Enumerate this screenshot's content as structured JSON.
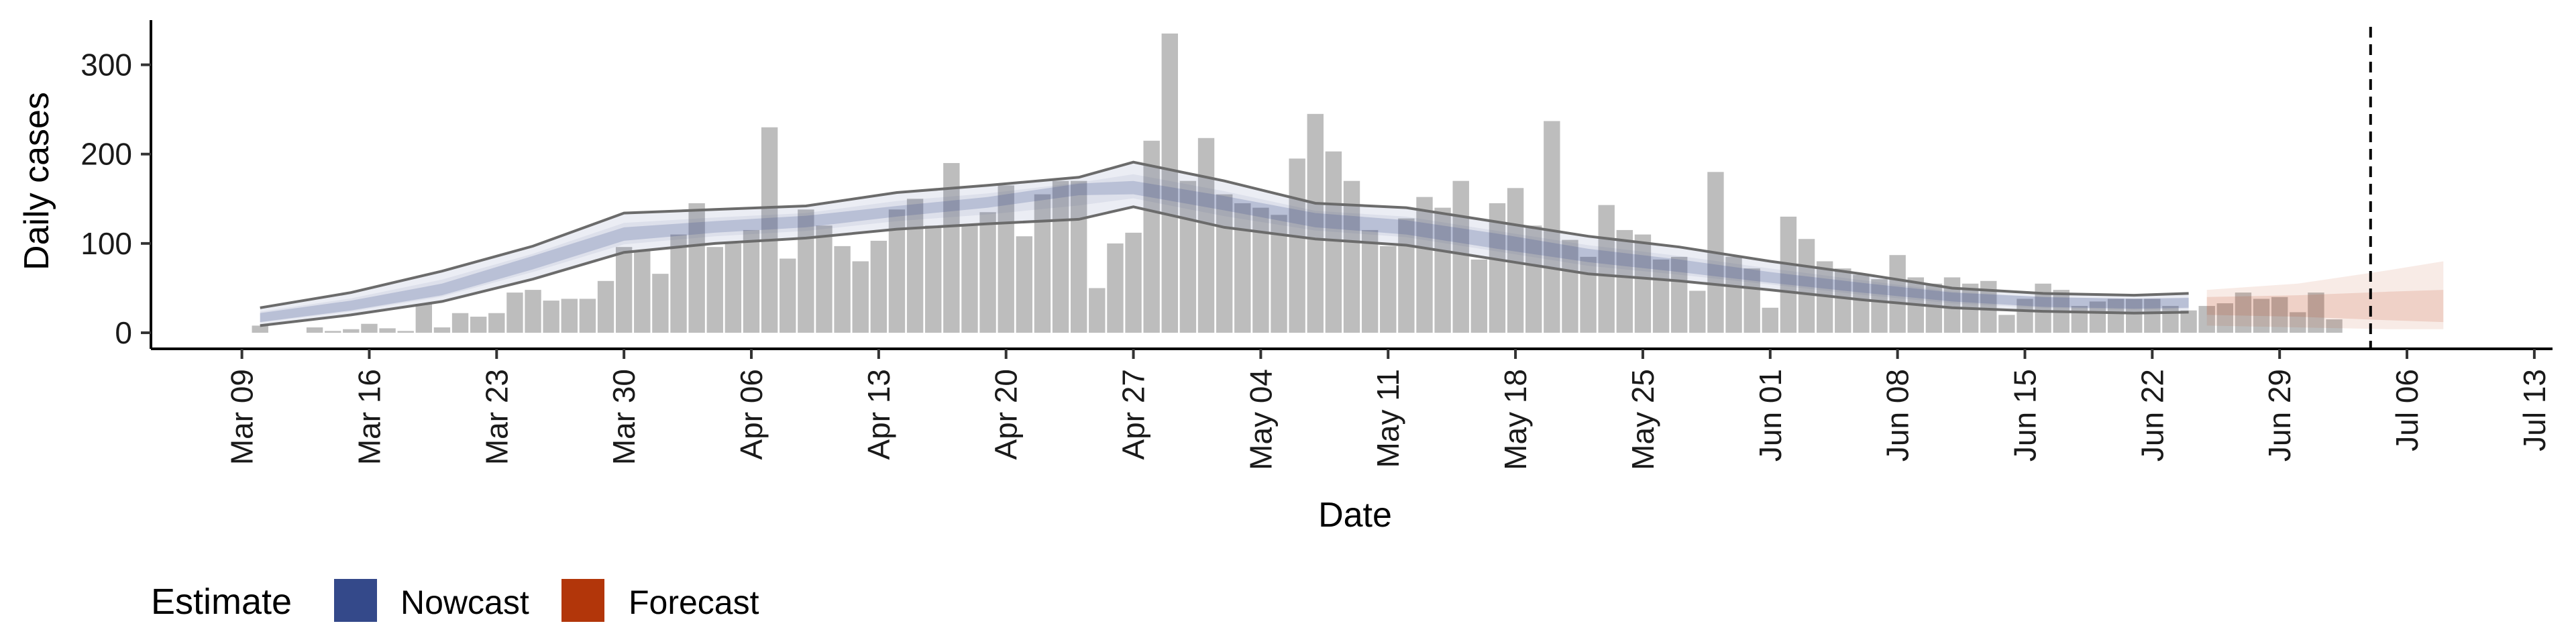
{
  "chart_data": {
    "type": "bar",
    "xlabel": "Date",
    "ylabel": "Daily cases",
    "x_range": [
      "2020-03-04",
      "2020-07-14"
    ],
    "ylim": [
      -18,
      350
    ],
    "y_ticks": [
      0,
      100,
      200,
      300
    ],
    "x_ticks": [
      {
        "date": "2020-03-09",
        "label": "Mar 09"
      },
      {
        "date": "2020-03-16",
        "label": "Mar 16"
      },
      {
        "date": "2020-03-23",
        "label": "Mar 23"
      },
      {
        "date": "2020-03-30",
        "label": "Mar 30"
      },
      {
        "date": "2020-04-06",
        "label": "Apr 06"
      },
      {
        "date": "2020-04-13",
        "label": "Apr 13"
      },
      {
        "date": "2020-04-20",
        "label": "Apr 20"
      },
      {
        "date": "2020-04-27",
        "label": "Apr 27"
      },
      {
        "date": "2020-05-04",
        "label": "May 04"
      },
      {
        "date": "2020-05-11",
        "label": "May 11"
      },
      {
        "date": "2020-05-18",
        "label": "May 18"
      },
      {
        "date": "2020-05-25",
        "label": "May 25"
      },
      {
        "date": "2020-06-01",
        "label": "Jun 01"
      },
      {
        "date": "2020-06-08",
        "label": "Jun 08"
      },
      {
        "date": "2020-06-15",
        "label": "Jun 15"
      },
      {
        "date": "2020-06-22",
        "label": "Jun 22"
      },
      {
        "date": "2020-06-29",
        "label": "Jun 29"
      },
      {
        "date": "2020-07-06",
        "label": "Jul 06"
      },
      {
        "date": "2020-07-13",
        "label": "Jul 13"
      }
    ],
    "bars": {
      "start_date": "2020-03-10",
      "values": [
        8,
        0,
        0,
        6,
        2,
        4,
        10,
        5,
        2,
        32,
        6,
        22,
        18,
        22,
        45,
        48,
        36,
        38,
        38,
        58,
        96,
        92,
        66,
        110,
        145,
        96,
        100,
        115,
        230,
        83,
        138,
        120,
        97,
        80,
        103,
        138,
        150,
        120,
        190,
        120,
        135,
        165,
        108,
        155,
        170,
        170,
        50,
        100,
        112,
        215,
        335,
        170,
        218,
        155,
        145,
        140,
        132,
        195,
        245,
        203,
        170,
        115,
        97,
        128,
        152,
        140,
        170,
        82,
        145,
        162,
        120,
        237,
        104,
        85,
        143,
        115,
        110,
        82,
        85,
        47,
        180,
        85,
        72,
        28,
        130,
        105,
        80,
        72,
        65,
        60,
        87,
        62,
        55,
        62,
        55,
        58,
        20,
        38,
        55,
        48,
        30,
        35,
        38,
        38,
        38,
        30,
        25,
        30,
        33,
        45,
        38,
        40,
        23,
        45,
        15
      ]
    },
    "series": [
      {
        "name": "Nowcast",
        "color": "#3a4f8f",
        "x": [
          "2020-03-10",
          "2020-03-15",
          "2020-03-20",
          "2020-03-25",
          "2020-03-30",
          "2020-04-04",
          "2020-04-09",
          "2020-04-14",
          "2020-04-19",
          "2020-04-24",
          "2020-04-27",
          "2020-05-02",
          "2020-05-07",
          "2020-05-12",
          "2020-05-17",
          "2020-05-22",
          "2020-05-27",
          "2020-06-01",
          "2020-06-06",
          "2020-06-11",
          "2020-06-16",
          "2020-06-21",
          "2020-06-24"
        ],
        "median": [
          17,
          30,
          48,
          78,
          110,
          118,
          124,
          136,
          145,
          160,
          162,
          145,
          126,
          118,
          102,
          86,
          74,
          62,
          50,
          40,
          34,
          32,
          33
        ],
        "inner_lower": [
          12,
          25,
          42,
          71,
          103,
          112,
          118,
          130,
          140,
          154,
          155,
          137,
          118,
          110,
          94,
          79,
          68,
          56,
          45,
          35,
          29,
          27,
          28
        ],
        "inner_upper": [
          22,
          36,
          55,
          86,
          118,
          125,
          131,
          142,
          152,
          167,
          170,
          153,
          134,
          126,
          111,
          94,
          82,
          68,
          56,
          45,
          40,
          38,
          39
        ],
        "outer_lower": [
          8,
          20,
          35,
          60,
          90,
          100,
          106,
          116,
          122,
          127,
          141,
          118,
          105,
          98,
          82,
          66,
          58,
          48,
          37,
          28,
          24,
          22,
          23
        ],
        "outer_upper": [
          28,
          45,
          69,
          97,
          134,
          138,
          142,
          157,
          165,
          174,
          191,
          170,
          145,
          140,
          124,
          108,
          96,
          80,
          66,
          50,
          44,
          42,
          44
        ]
      },
      {
        "name": "Forecast",
        "color": "#b83a0e",
        "x": [
          "2020-06-25",
          "2020-06-30",
          "2020-07-05",
          "2020-07-08"
        ],
        "median": [
          30,
          30,
          30,
          30
        ],
        "inner_lower": [
          20,
          18,
          14,
          12
        ],
        "inner_upper": [
          40,
          42,
          46,
          48
        ],
        "outer_lower": [
          8,
          6,
          4,
          4
        ],
        "outer_upper": [
          48,
          55,
          70,
          80
        ]
      }
    ],
    "vline_date": "2020-07-04",
    "legend": {
      "title": "Estimate",
      "position": "bottom-left",
      "items": [
        {
          "label": "Nowcast",
          "color": "#34498a"
        },
        {
          "label": "Forecast",
          "color": "#b2360a"
        }
      ]
    },
    "grid": false
  }
}
